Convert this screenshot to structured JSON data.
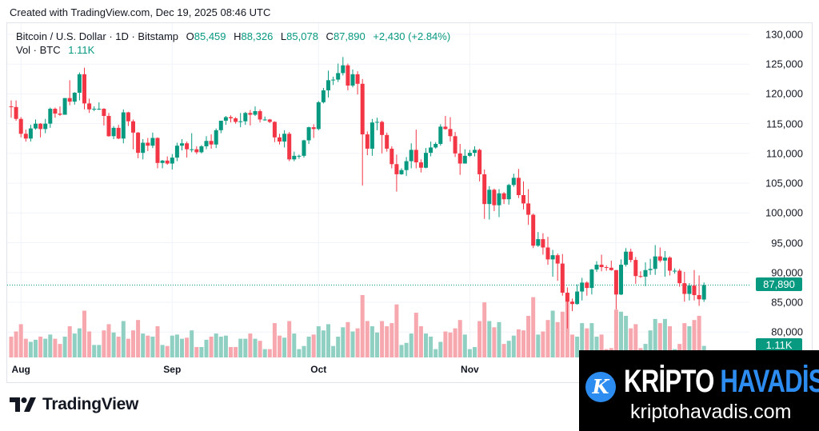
{
  "header": {
    "created": "Created with TradingView.com, Dec 19, 2025 08:46 UTC"
  },
  "legend": {
    "symbol": "Bitcoin / U.S. Dollar · 1D · Bitstamp",
    "o_label": "O",
    "o": "85,459",
    "h_label": "H",
    "h": "88,326",
    "l_label": "L",
    "l": "85,078",
    "c_label": "C",
    "c": "87,890",
    "change": "+2,430 (+2.84%)",
    "vol_label": "Vol · BTC",
    "vol": "1.11K"
  },
  "price_tag": "87,890",
  "volume_tag": "1.11K",
  "branding": {
    "tradingview": "TradingView"
  },
  "watermark": {
    "word1": "KRİPTO",
    "word2": "HAVADİS",
    "url": "kriptohavadis.com",
    "icon_letter": "K"
  },
  "colors": {
    "up": "#089981",
    "down": "#f23645",
    "up_volume": "#8fd0c3",
    "down_volume": "#f7a8ae",
    "watermark_blue": "#2d8cf0"
  },
  "chart_data": {
    "type": "candlestick",
    "title": "",
    "y_unit": "USD (thousands in rows)",
    "y_ticks": [
      "130,000",
      "125,000",
      "120,000",
      "115,000",
      "110,000",
      "105,000",
      "100,000",
      "95,000",
      "90,000",
      "85,000",
      "80,000"
    ],
    "y_tick_values": [
      130,
      125,
      120,
      115,
      110,
      105,
      100,
      95,
      90,
      85,
      80
    ],
    "ylim": [
      78,
      131
    ],
    "x_ticks": [
      {
        "label": "Aug",
        "date": "2025-08-01"
      },
      {
        "label": "Sep",
        "date": "2025-09-01"
      },
      {
        "label": "Oct",
        "date": "2025-10-01"
      },
      {
        "label": "Nov",
        "date": "2025-11-01"
      }
    ],
    "grid": true,
    "last_price": 87.89,
    "columns": [
      "date",
      "open",
      "high",
      "low",
      "close",
      "volume_k_btc"
    ],
    "rows": [
      [
        "2025-07-30",
        117.9,
        118.9,
        116.0,
        117.8,
        2.0
      ],
      [
        "2025-07-31",
        117.8,
        118.9,
        115.5,
        115.8,
        2.5
      ],
      [
        "2025-08-01",
        115.8,
        116.1,
        112.7,
        113.3,
        3.2
      ],
      [
        "2025-08-02",
        113.3,
        114.0,
        112.0,
        112.5,
        1.8
      ],
      [
        "2025-08-03",
        112.5,
        114.8,
        112.0,
        114.2,
        1.5
      ],
      [
        "2025-08-04",
        114.2,
        115.7,
        114.0,
        115.0,
        1.7
      ],
      [
        "2025-08-05",
        115.0,
        115.1,
        112.7,
        114.1,
        2.0
      ],
      [
        "2025-08-06",
        114.1,
        115.8,
        113.4,
        115.0,
        1.8
      ],
      [
        "2025-08-07",
        115.0,
        117.7,
        114.3,
        117.5,
        2.2
      ],
      [
        "2025-08-08",
        117.5,
        117.7,
        116.0,
        116.7,
        1.8
      ],
      [
        "2025-08-09",
        116.7,
        117.9,
        116.3,
        116.5,
        1.3
      ],
      [
        "2025-08-10",
        116.5,
        119.3,
        116.5,
        119.3,
        2.0
      ],
      [
        "2025-08-11",
        119.3,
        122.3,
        118.1,
        118.7,
        3.0
      ],
      [
        "2025-08-12",
        118.7,
        120.3,
        118.2,
        120.2,
        2.3
      ],
      [
        "2025-08-13",
        120.2,
        123.6,
        118.9,
        123.3,
        2.8
      ],
      [
        "2025-08-14",
        123.3,
        124.4,
        117.4,
        118.4,
        4.5
      ],
      [
        "2025-08-15",
        118.4,
        119.2,
        116.8,
        117.4,
        2.5
      ],
      [
        "2025-08-16",
        117.4,
        117.9,
        117.1,
        117.5,
        1.2
      ],
      [
        "2025-08-17",
        117.5,
        118.6,
        117.3,
        117.5,
        1.2
      ],
      [
        "2025-08-18",
        117.5,
        117.6,
        114.7,
        116.3,
        2.6
      ],
      [
        "2025-08-19",
        116.3,
        116.8,
        112.8,
        112.9,
        3.2
      ],
      [
        "2025-08-20",
        112.9,
        114.6,
        112.4,
        114.3,
        2.4
      ],
      [
        "2025-08-21",
        114.3,
        114.8,
        112.4,
        112.5,
        2.0
      ],
      [
        "2025-08-22",
        112.5,
        117.4,
        111.7,
        116.9,
        3.5
      ],
      [
        "2025-08-23",
        116.9,
        117.0,
        114.6,
        115.4,
        1.8
      ],
      [
        "2025-08-24",
        115.4,
        115.7,
        110.7,
        113.5,
        2.6
      ],
      [
        "2025-08-25",
        113.5,
        113.6,
        109.2,
        110.1,
        3.6
      ],
      [
        "2025-08-26",
        110.1,
        112.4,
        109.0,
        111.8,
        2.3
      ],
      [
        "2025-08-27",
        111.8,
        112.6,
        110.4,
        111.3,
        2.1
      ],
      [
        "2025-08-28",
        111.3,
        113.5,
        110.9,
        112.6,
        2.0
      ],
      [
        "2025-08-29",
        112.6,
        112.7,
        107.5,
        108.4,
        3.0
      ],
      [
        "2025-08-30",
        108.4,
        108.9,
        107.5,
        108.8,
        1.2
      ],
      [
        "2025-08-31",
        108.8,
        109.5,
        108.1,
        108.3,
        1.1
      ],
      [
        "2025-09-01",
        108.3,
        109.9,
        107.3,
        109.3,
        2.1
      ],
      [
        "2025-09-02",
        109.3,
        111.8,
        108.7,
        111.3,
        2.2
      ],
      [
        "2025-09-03",
        111.3,
        112.4,
        110.5,
        111.7,
        1.8
      ],
      [
        "2025-09-04",
        111.7,
        112.0,
        109.3,
        110.7,
        1.9
      ],
      [
        "2025-09-05",
        110.7,
        113.4,
        110.2,
        110.7,
        2.6
      ],
      [
        "2025-09-06",
        110.7,
        111.2,
        109.9,
        110.2,
        1.0
      ],
      [
        "2025-09-07",
        110.2,
        111.4,
        110.0,
        111.2,
        1.0
      ],
      [
        "2025-09-08",
        111.2,
        112.9,
        110.7,
        112.1,
        1.7
      ],
      [
        "2025-09-09",
        112.1,
        113.2,
        110.8,
        111.5,
        2.0
      ],
      [
        "2025-09-10",
        111.5,
        114.2,
        110.9,
        113.9,
        2.3
      ],
      [
        "2025-09-11",
        113.9,
        115.5,
        113.4,
        115.5,
        2.0
      ],
      [
        "2025-09-12",
        115.5,
        116.3,
        114.8,
        116.1,
        2.1
      ],
      [
        "2025-09-13",
        116.1,
        116.4,
        115.2,
        115.9,
        1.0
      ],
      [
        "2025-09-14",
        115.9,
        116.1,
        115.0,
        115.3,
        1.0
      ],
      [
        "2025-09-15",
        115.3,
        116.8,
        114.4,
        115.4,
        1.8
      ],
      [
        "2025-09-16",
        115.4,
        117.0,
        114.8,
        116.8,
        1.8
      ],
      [
        "2025-09-17",
        116.8,
        117.3,
        114.7,
        116.5,
        2.3
      ],
      [
        "2025-09-18",
        116.5,
        117.9,
        116.3,
        117.1,
        1.8
      ],
      [
        "2025-09-19",
        117.1,
        117.4,
        115.2,
        115.7,
        1.6
      ],
      [
        "2025-09-20",
        115.7,
        116.2,
        115.5,
        115.7,
        0.8
      ],
      [
        "2025-09-21",
        115.7,
        115.8,
        115.1,
        115.3,
        0.8
      ],
      [
        "2025-09-22",
        115.3,
        115.4,
        111.9,
        112.7,
        3.3
      ],
      [
        "2025-09-23",
        112.7,
        113.3,
        111.5,
        112.0,
        2.1
      ],
      [
        "2025-09-24",
        112.0,
        113.9,
        111.0,
        113.3,
        1.9
      ],
      [
        "2025-09-25",
        113.3,
        113.6,
        108.7,
        109.0,
        3.5
      ],
      [
        "2025-09-26",
        109.0,
        110.3,
        108.7,
        109.6,
        2.3
      ],
      [
        "2025-09-27",
        109.6,
        109.8,
        109.1,
        109.6,
        0.8
      ],
      [
        "2025-09-28",
        109.6,
        112.3,
        109.3,
        112.2,
        1.1
      ],
      [
        "2025-09-29",
        112.2,
        114.5,
        111.6,
        114.4,
        2.0
      ],
      [
        "2025-09-30",
        114.4,
        114.9,
        112.6,
        114.1,
        2.2
      ],
      [
        "2025-10-01",
        114.1,
        118.8,
        113.9,
        118.6,
        3.0
      ],
      [
        "2025-10-02",
        118.6,
        121.0,
        118.4,
        120.6,
        2.6
      ],
      [
        "2025-10-03",
        120.6,
        123.9,
        119.4,
        122.3,
        3.2
      ],
      [
        "2025-10-04",
        122.3,
        122.9,
        121.5,
        122.4,
        1.1
      ],
      [
        "2025-10-05",
        122.4,
        125.1,
        122.0,
        123.5,
        2.0
      ],
      [
        "2025-10-06",
        123.5,
        126.2,
        123.1,
        124.8,
        2.9
      ],
      [
        "2025-10-07",
        124.8,
        125.1,
        120.6,
        121.4,
        3.4
      ],
      [
        "2025-10-08",
        121.4,
        124.1,
        121.1,
        123.3,
        2.5
      ],
      [
        "2025-10-09",
        123.3,
        123.8,
        119.9,
        121.7,
        2.8
      ],
      [
        "2025-10-10",
        121.7,
        122.5,
        104.6,
        113.2,
        6.0
      ],
      [
        "2025-10-11",
        113.2,
        113.7,
        109.7,
        110.8,
        3.5
      ],
      [
        "2025-10-12",
        110.8,
        115.8,
        109.6,
        115.2,
        3.0
      ],
      [
        "2025-10-13",
        115.2,
        116.0,
        113.9,
        115.3,
        2.4
      ],
      [
        "2025-10-14",
        115.3,
        115.5,
        110.0,
        113.1,
        3.5
      ],
      [
        "2025-10-15",
        113.1,
        113.5,
        110.3,
        110.8,
        3.0
      ],
      [
        "2025-10-16",
        110.8,
        111.2,
        107.5,
        108.2,
        3.3
      ],
      [
        "2025-10-17",
        108.2,
        109.8,
        103.6,
        106.5,
        5.1
      ],
      [
        "2025-10-18",
        106.5,
        107.5,
        106.4,
        107.2,
        1.2
      ],
      [
        "2025-10-19",
        107.2,
        109.4,
        106.2,
        108.7,
        1.4
      ],
      [
        "2025-10-20",
        108.7,
        111.7,
        107.5,
        110.6,
        2.3
      ],
      [
        "2025-10-21",
        110.6,
        114.0,
        107.5,
        108.5,
        4.3
      ],
      [
        "2025-10-22",
        108.5,
        109.0,
        106.8,
        107.6,
        3.0
      ],
      [
        "2025-10-23",
        107.6,
        110.9,
        107.5,
        110.1,
        2.3
      ],
      [
        "2025-10-24",
        110.1,
        112.0,
        109.5,
        111.0,
        2.0
      ],
      [
        "2025-10-25",
        111.0,
        111.9,
        110.8,
        111.6,
        0.8
      ],
      [
        "2025-10-26",
        111.6,
        114.9,
        111.3,
        114.5,
        1.5
      ],
      [
        "2025-10-27",
        114.5,
        116.3,
        114.0,
        114.1,
        2.5
      ],
      [
        "2025-10-28",
        114.1,
        116.1,
        112.0,
        112.9,
        2.4
      ],
      [
        "2025-10-29",
        112.9,
        113.6,
        109.4,
        110.0,
        2.8
      ],
      [
        "2025-10-30",
        110.0,
        111.6,
        106.4,
        108.3,
        3.6
      ],
      [
        "2025-10-31",
        108.3,
        110.7,
        108.3,
        109.6,
        2.2
      ],
      [
        "2025-11-01",
        109.6,
        110.6,
        109.4,
        110.1,
        0.8
      ],
      [
        "2025-11-02",
        110.1,
        111.2,
        109.5,
        110.6,
        1.0
      ],
      [
        "2025-11-03",
        110.6,
        110.8,
        105.3,
        106.5,
        3.5
      ],
      [
        "2025-11-04",
        106.5,
        107.3,
        99.0,
        101.5,
        5.3
      ],
      [
        "2025-11-05",
        101.5,
        104.5,
        98.9,
        103.9,
        3.5
      ],
      [
        "2025-11-06",
        103.9,
        104.1,
        100.3,
        101.3,
        2.9
      ],
      [
        "2025-11-07",
        101.3,
        104.0,
        99.3,
        103.3,
        3.4
      ],
      [
        "2025-11-08",
        103.3,
        103.5,
        101.5,
        102.3,
        1.3
      ],
      [
        "2025-11-09",
        102.3,
        104.9,
        101.4,
        104.7,
        1.6
      ],
      [
        "2025-11-10",
        104.7,
        106.6,
        104.4,
        105.9,
        2.1
      ],
      [
        "2025-11-11",
        105.9,
        107.4,
        102.5,
        103.0,
        2.7
      ],
      [
        "2025-11-12",
        103.0,
        105.3,
        100.6,
        101.6,
        2.6
      ],
      [
        "2025-11-13",
        101.6,
        104.0,
        98.0,
        99.7,
        4.0
      ],
      [
        "2025-11-14",
        99.7,
        99.9,
        94.1,
        94.5,
        5.8
      ],
      [
        "2025-11-15",
        94.5,
        96.8,
        94.3,
        95.6,
        2.2
      ],
      [
        "2025-11-16",
        95.6,
        96.6,
        93.0,
        94.2,
        2.5
      ],
      [
        "2025-11-17",
        94.2,
        96.0,
        91.3,
        92.2,
        3.6
      ],
      [
        "2025-11-18",
        92.2,
        93.8,
        89.3,
        92.9,
        4.5
      ],
      [
        "2025-11-19",
        92.9,
        93.2,
        88.6,
        91.5,
        3.4
      ],
      [
        "2025-11-20",
        91.5,
        93.1,
        86.1,
        86.6,
        4.4
      ],
      [
        "2025-11-21",
        86.6,
        87.5,
        80.6,
        85.1,
        6.2
      ],
      [
        "2025-11-22",
        85.1,
        85.6,
        83.5,
        84.7,
        2.2
      ],
      [
        "2025-11-23",
        84.7,
        88.0,
        84.6,
        86.8,
        2.0
      ],
      [
        "2025-11-24",
        86.8,
        89.1,
        85.3,
        88.3,
        3.3
      ],
      [
        "2025-11-25",
        88.3,
        88.5,
        86.1,
        87.4,
        2.8
      ],
      [
        "2025-11-26",
        87.4,
        90.6,
        86.3,
        90.5,
        3.3
      ],
      [
        "2025-11-27",
        90.5,
        91.9,
        90.1,
        91.3,
        2.0
      ],
      [
        "2025-11-28",
        91.3,
        93.0,
        90.2,
        90.9,
        2.2
      ],
      [
        "2025-11-29",
        90.9,
        91.2,
        90.3,
        90.8,
        0.8
      ],
      [
        "2025-11-30",
        90.8,
        92.0,
        90.3,
        90.4,
        0.9
      ],
      [
        "2025-12-01",
        90.4,
        90.4,
        83.8,
        86.3,
        4.6
      ],
      [
        "2025-12-02",
        86.3,
        92.2,
        86.2,
        91.3,
        4.4
      ],
      [
        "2025-12-03",
        91.3,
        94.1,
        91.0,
        93.5,
        4.0
      ],
      [
        "2025-12-04",
        93.5,
        94.0,
        91.7,
        92.1,
        2.8
      ],
      [
        "2025-12-05",
        92.1,
        92.6,
        88.1,
        89.4,
        3.2
      ],
      [
        "2025-12-06",
        89.4,
        90.2,
        89.1,
        89.3,
        0.9
      ],
      [
        "2025-12-07",
        89.3,
        91.7,
        87.7,
        90.4,
        1.3
      ],
      [
        "2025-12-08",
        90.4,
        92.3,
        89.6,
        90.6,
        2.6
      ],
      [
        "2025-12-09",
        90.6,
        94.6,
        89.6,
        92.7,
        3.7
      ],
      [
        "2025-12-10",
        92.7,
        94.2,
        91.7,
        92.0,
        3.3
      ],
      [
        "2025-12-11",
        92.0,
        93.6,
        89.3,
        92.5,
        3.7
      ],
      [
        "2025-12-12",
        92.5,
        92.7,
        89.5,
        90.3,
        3.0
      ],
      [
        "2025-12-13",
        90.3,
        90.7,
        89.8,
        90.3,
        0.8
      ],
      [
        "2025-12-14",
        90.3,
        90.6,
        87.6,
        88.2,
        1.3
      ],
      [
        "2025-12-15",
        88.2,
        90.1,
        85.1,
        86.4,
        3.3
      ],
      [
        "2025-12-16",
        86.4,
        88.2,
        85.3,
        87.8,
        3.0
      ],
      [
        "2025-12-17",
        87.8,
        90.4,
        85.3,
        86.2,
        3.6
      ],
      [
        "2025-12-18",
        86.2,
        89.5,
        84.4,
        85.5,
        4.0
      ],
      [
        "2025-12-19",
        85.459,
        88.326,
        85.078,
        87.89,
        1.11
      ]
    ]
  }
}
